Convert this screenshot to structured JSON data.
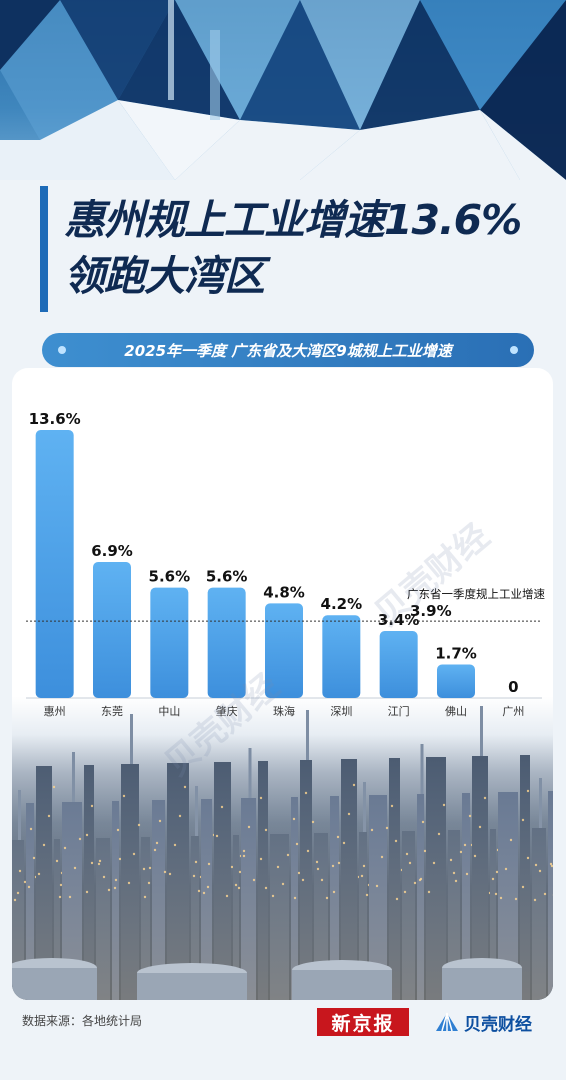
{
  "header": {
    "title_line1": "惠州规上工业增速13.6%",
    "title_line2": "领跑大湾区"
  },
  "chart_data": {
    "type": "bar",
    "title": "2025年一季度 广东省及大湾区9城规上工业增速",
    "categories": [
      "惠州",
      "东莞",
      "中山",
      "肇庆",
      "珠海",
      "深圳",
      "江门",
      "佛山",
      "广州"
    ],
    "values": [
      13.6,
      6.9,
      5.6,
      5.6,
      4.8,
      4.2,
      3.4,
      1.7,
      0
    ],
    "labels": [
      "13.6%",
      "6.9%",
      "5.6%",
      "5.6%",
      "4.8%",
      "4.2%",
      "3.4%",
      "1.7%",
      "0"
    ],
    "ylim": [
      0,
      13.6
    ],
    "reference_line": {
      "name": "广东省一季度规上工业增速",
      "value": 3.9,
      "label": "3.9%"
    },
    "bar_color": "#4aa3ea",
    "grid": false
  },
  "watermark": "贝壳财经",
  "footer": {
    "source": "数据来源：各地统计局",
    "logo_left": "新京报",
    "logo_right": "贝壳财经"
  }
}
